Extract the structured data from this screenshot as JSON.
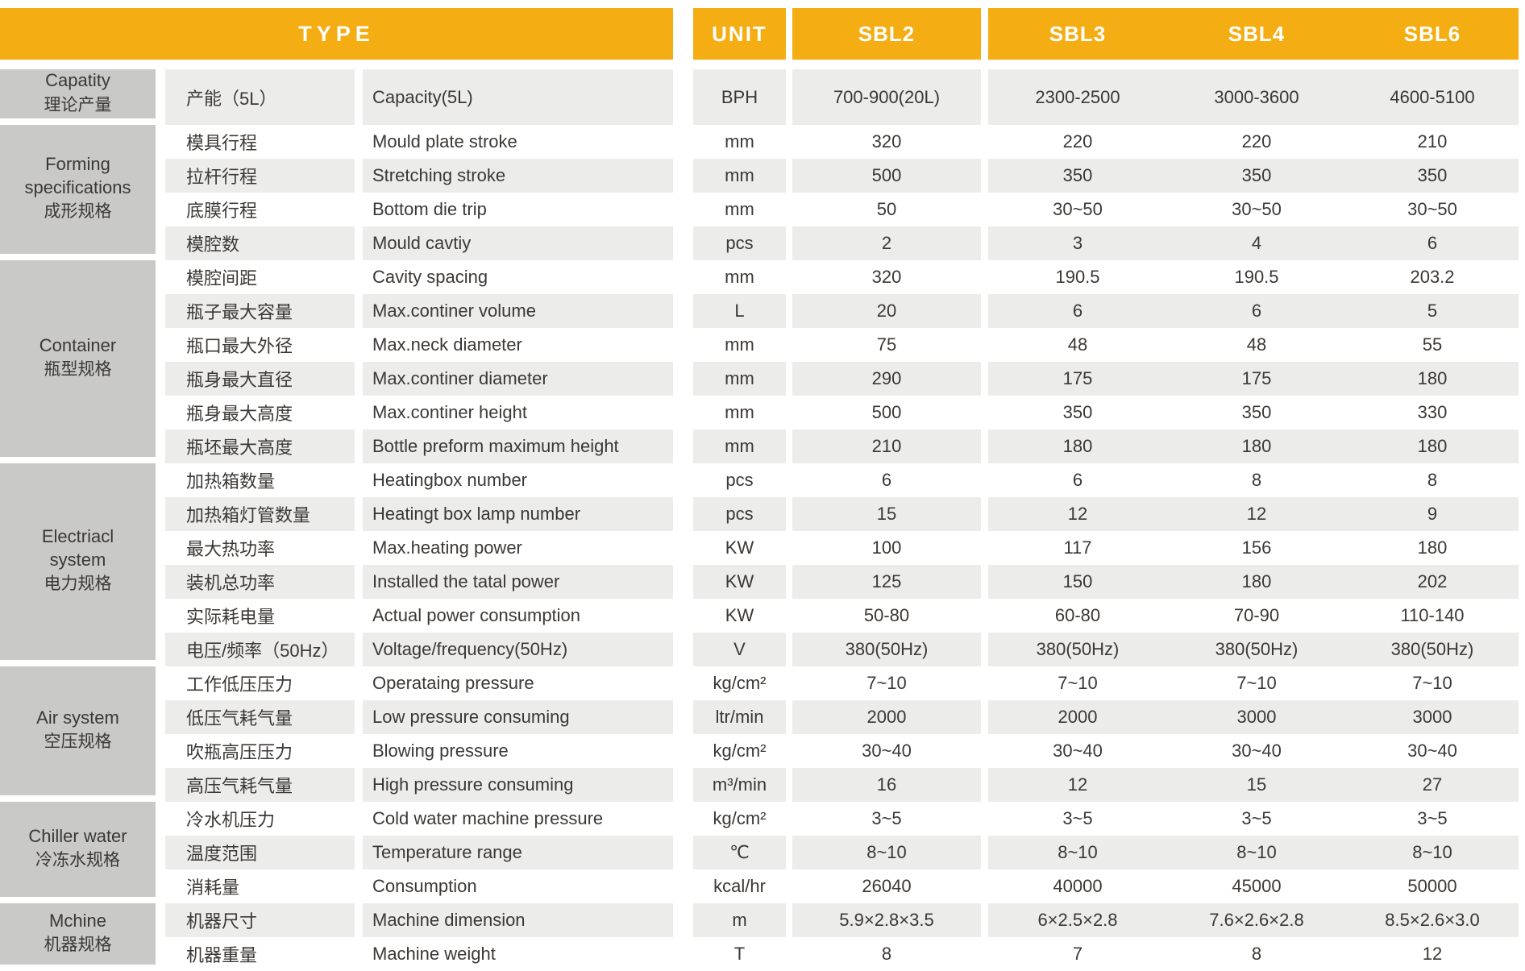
{
  "colors": {
    "header_bg": "#F5AD14",
    "header_text": "#FFFFFF",
    "group_cell_bg": "#C9C9C7",
    "row_alt_bg": "#ECECEB",
    "row_bg": "#FFFFFF",
    "text": "#3B3835",
    "separator": "#FFFFFF"
  },
  "header": {
    "type_label": "TYPE",
    "unit_label": "UNIT",
    "models": [
      "SBL2",
      "SBL3",
      "SBL4",
      "SBL6"
    ]
  },
  "sections": [
    {
      "group_en": "Capatity",
      "group_cn": "理论产量",
      "rows": [
        {
          "label_cn": "产能（5L）",
          "label_en": "Capacity(5L)",
          "unit": "BPH",
          "values": [
            "700-900(20L)",
            "2300-2500",
            "3000-3600",
            "4600-5100"
          ]
        }
      ]
    },
    {
      "group_en": "Forming specifications",
      "group_cn": "成形规格",
      "rows": [
        {
          "label_cn": "模具行程",
          "label_en": "Mould plate stroke",
          "unit": "mm",
          "values": [
            "320",
            "220",
            "220",
            "210"
          ]
        },
        {
          "label_cn": "拉杆行程",
          "label_en": "Stretching stroke",
          "unit": "mm",
          "values": [
            "500",
            "350",
            "350",
            "350"
          ]
        },
        {
          "label_cn": "底膜行程",
          "label_en": "Bottom die trip",
          "unit": "mm",
          "values": [
            "50",
            "30~50",
            "30~50",
            "30~50"
          ]
        },
        {
          "label_cn": "模腔数",
          "label_en": "Mould cavtiy",
          "unit": "pcs",
          "values": [
            "2",
            "3",
            "4",
            "6"
          ]
        }
      ]
    },
    {
      "group_en": "Container",
      "group_cn": "瓶型规格",
      "rows": [
        {
          "label_cn": "模腔间距",
          "label_en": "Cavity spacing",
          "unit": "mm",
          "values": [
            "320",
            "190.5",
            "190.5",
            "203.2"
          ]
        },
        {
          "label_cn": "瓶子最大容量",
          "label_en": "Max.continer volume",
          "unit": "L",
          "values": [
            "20",
            "6",
            "6",
            "5"
          ]
        },
        {
          "label_cn": "瓶口最大外径",
          "label_en": "Max.neck diameter",
          "unit": "mm",
          "values": [
            "75",
            "48",
            "48",
            "55"
          ]
        },
        {
          "label_cn": "瓶身最大直径",
          "label_en": "Max.continer diameter",
          "unit": "mm",
          "values": [
            "290",
            "175",
            "175",
            "180"
          ]
        },
        {
          "label_cn": "瓶身最大高度",
          "label_en": "Max.continer height",
          "unit": "mm",
          "values": [
            "500",
            "350",
            "350",
            "330"
          ]
        },
        {
          "label_cn": "瓶坯最大高度",
          "label_en": "Bottle preform maximum height",
          "unit": "mm",
          "values": [
            "210",
            "180",
            "180",
            "180"
          ]
        }
      ]
    },
    {
      "group_en": "Electriacl system",
      "group_cn": "电力规格",
      "rows": [
        {
          "label_cn": "加热箱数量",
          "label_en": "Heatingbox number",
          "unit": "pcs",
          "values": [
            "6",
            "6",
            "8",
            "8"
          ]
        },
        {
          "label_cn": "加热箱灯管数量",
          "label_en": "Heatingt box lamp number",
          "unit": "pcs",
          "values": [
            "15",
            "12",
            "12",
            "9"
          ]
        },
        {
          "label_cn": "最大热功率",
          "label_en": "Max.heating power",
          "unit": "KW",
          "values": [
            "100",
            "117",
            "156",
            "180"
          ]
        },
        {
          "label_cn": "装机总功率",
          "label_en": "Installed the tatal power",
          "unit": "KW",
          "values": [
            "125",
            "150",
            "180",
            "202"
          ]
        },
        {
          "label_cn": "实际耗电量",
          "label_en": "Actual power consumption",
          "unit": "KW",
          "values": [
            "50-80",
            "60-80",
            "70-90",
            "110-140"
          ]
        },
        {
          "label_cn": "电压/频率（50Hz）",
          "label_en": "Voltage/frequency(50Hz)",
          "unit": "V",
          "values": [
            "380(50Hz)",
            "380(50Hz)",
            "380(50Hz)",
            "380(50Hz)"
          ]
        }
      ]
    },
    {
      "group_en": "Air system",
      "group_cn": "空压规格",
      "rows": [
        {
          "label_cn": "工作低压压力",
          "label_en": "Operataing pressure",
          "unit": "kg/cm²",
          "values": [
            "7~10",
            "7~10",
            "7~10",
            "7~10"
          ]
        },
        {
          "label_cn": "低压气耗气量",
          "label_en": "Low pressure consuming",
          "unit": "ltr/min",
          "values": [
            "2000",
            "2000",
            "3000",
            "3000"
          ]
        },
        {
          "label_cn": "吹瓶高压压力",
          "label_en": "Blowing pressure",
          "unit": "kg/cm²",
          "values": [
            "30~40",
            "30~40",
            "30~40",
            "30~40"
          ]
        },
        {
          "label_cn": "高压气耗气量",
          "label_en": "High pressure consuming",
          "unit": "m³/min",
          "values": [
            "16",
            "12",
            "15",
            "27"
          ]
        }
      ]
    },
    {
      "group_en": "Chiller water",
      "group_cn": "冷冻水规格",
      "rows": [
        {
          "label_cn": "冷水机压力",
          "label_en": "Cold water machine pressure",
          "unit": "kg/cm²",
          "values": [
            "3~5",
            "3~5",
            "3~5",
            "3~5"
          ]
        },
        {
          "label_cn": "温度范围",
          "label_en": "Temperature range",
          "unit": "℃",
          "values": [
            "8~10",
            "8~10",
            "8~10",
            "8~10"
          ]
        },
        {
          "label_cn": "消耗量",
          "label_en": "Consumption",
          "unit": "kcal/hr",
          "values": [
            "26040",
            "40000",
            "45000",
            "50000"
          ]
        }
      ]
    },
    {
      "group_en": "Mchine",
      "group_cn": "机器规格",
      "rows": [
        {
          "label_cn": "机器尺寸",
          "label_en": "Machine dimension",
          "unit": "m",
          "values": [
            "5.9×2.8×3.5",
            "6×2.5×2.8",
            "7.6×2.6×2.8",
            "8.5×2.6×3.0"
          ]
        },
        {
          "label_cn": "机器重量",
          "label_en": "Machine weight",
          "unit": "T",
          "values": [
            "8",
            "7",
            "8",
            "12"
          ]
        }
      ]
    }
  ]
}
